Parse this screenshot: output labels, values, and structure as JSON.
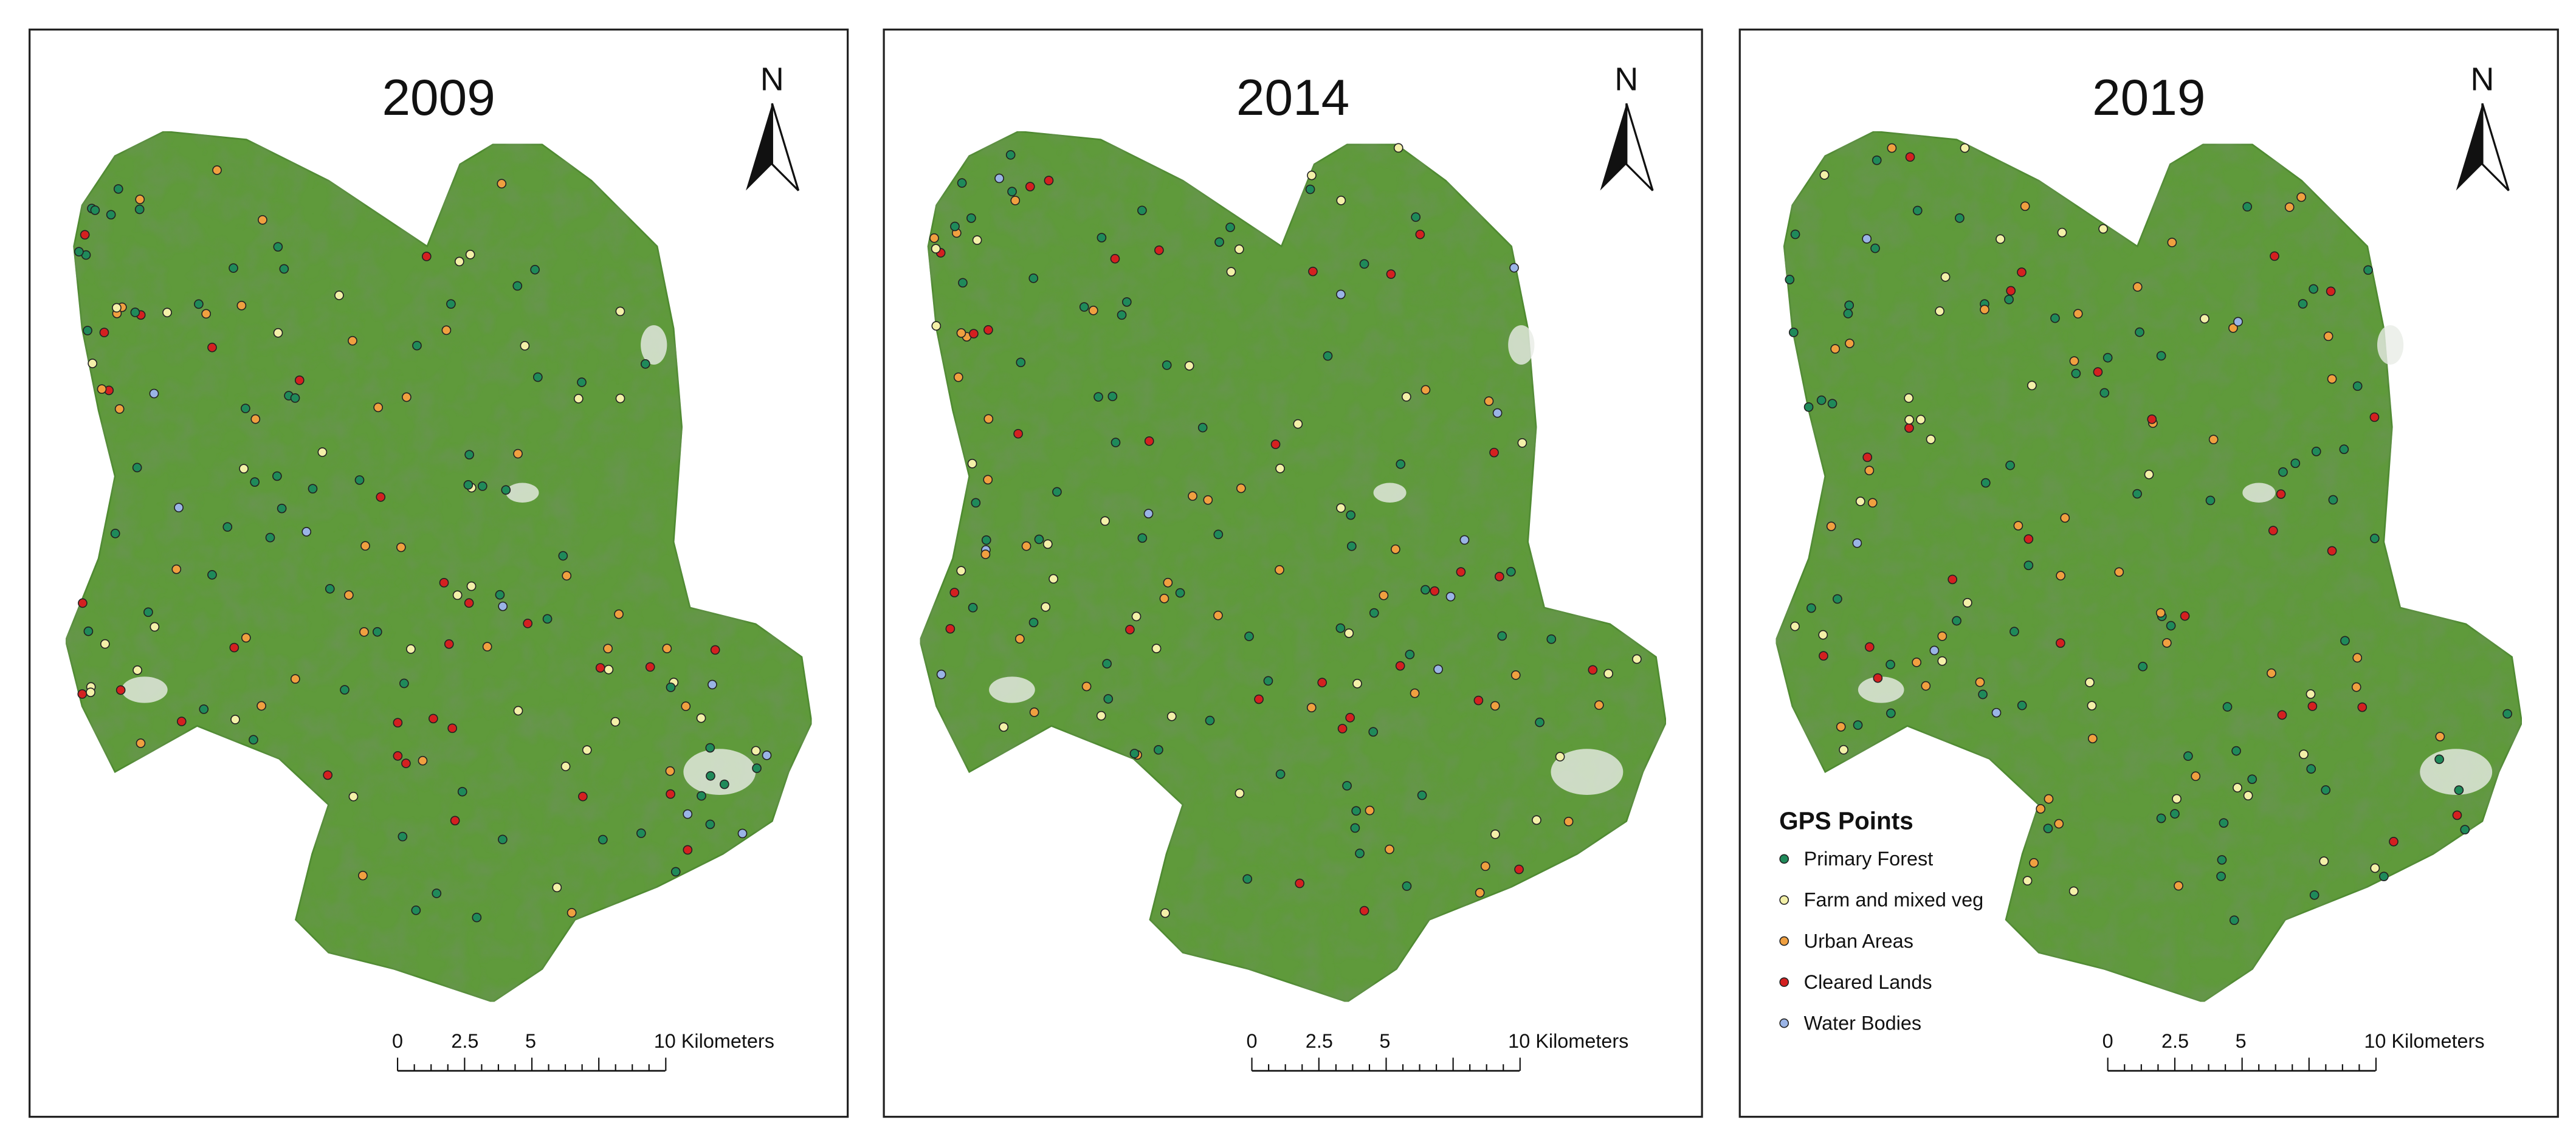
{
  "panels": [
    {
      "title": "2009",
      "north": "N",
      "scale_bar": [
        "0",
        "2.5",
        "5",
        "10 Kilometers"
      ]
    },
    {
      "title": "2014",
      "north": "N",
      "scale_bar": [
        "0",
        "2.5",
        "5",
        "10 Kilometers"
      ]
    },
    {
      "title": "2019",
      "north": "N",
      "scale_bar": [
        "0",
        "2.5",
        "5",
        "10 Kilometers"
      ]
    }
  ],
  "legend": {
    "title": "GPS Points",
    "items": [
      {
        "label": "Primary Forest",
        "color": "#1f8a5a"
      },
      {
        "label": "Farm and mixed veg",
        "color": "#f3f0a8"
      },
      {
        "label": "Urban Areas",
        "color": "#f0a040"
      },
      {
        "label": "Cleared Lands",
        "color": "#d42020"
      },
      {
        "label": "Water Bodies",
        "color": "#9ab4e6"
      }
    ]
  }
}
